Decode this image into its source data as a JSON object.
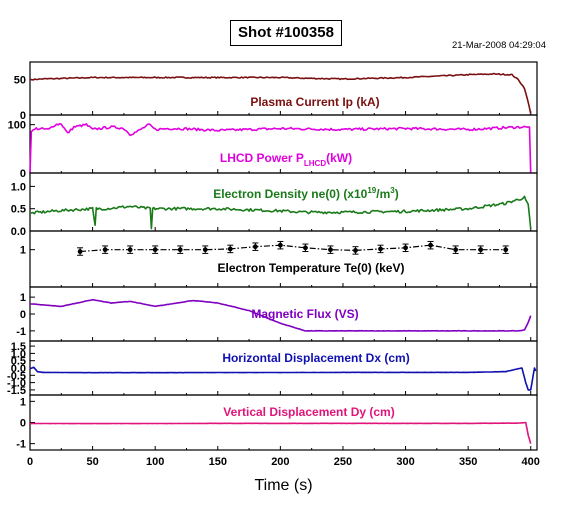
{
  "chart_data": {
    "type": "line",
    "title": "Shot #100358",
    "timestamp": "21-Mar-2008 04:29:04",
    "xlabel": "Time (s)",
    "xlim": [
      0,
      405
    ],
    "x_ticks": [
      "0",
      "50",
      "100",
      "150",
      "200",
      "250",
      "300",
      "350",
      "400"
    ],
    "panels": [
      {
        "label": "Plasma Current Ip (kA)",
        "label_main": "Plasma Current Ip (kA)",
        "color": "#7a1010",
        "ylim": [
          0,
          75
        ],
        "y_ticks": [
          0,
          50
        ],
        "x": [
          0,
          10,
          50,
          100,
          150,
          200,
          220,
          250,
          300,
          350,
          370,
          385,
          390,
          395,
          398,
          400
        ],
        "y": [
          50,
          51,
          53,
          53,
          53,
          53,
          52,
          51,
          53,
          57,
          58,
          57,
          50,
          38,
          18,
          2
        ]
      },
      {
        "label": "LHCD Power P LHCD (kW)",
        "label_main": "LHCD Power P",
        "label_sub": "LHCD",
        "label_tail": "(kW)",
        "color": "#e000e0",
        "ylim": [
          0,
          120
        ],
        "y_ticks": [
          0,
          100
        ],
        "x": [
          0,
          1,
          5,
          15,
          20,
          25,
          30,
          35,
          45,
          50,
          55,
          65,
          70,
          75,
          80,
          85,
          95,
          100,
          110,
          120,
          150,
          200,
          250,
          300,
          350,
          390,
          399,
          400
        ],
        "y": [
          0,
          85,
          92,
          90,
          100,
          102,
          82,
          95,
          100,
          90,
          92,
          95,
          94,
          92,
          80,
          85,
          100,
          90,
          92,
          92,
          88,
          92,
          90,
          92,
          90,
          95,
          95,
          0
        ]
      },
      {
        "label": "Electron Density ne(0) (x10^19/m^3)",
        "label_main": "Electron Density ne(0) (x10",
        "label_sup1": "19",
        "label_mid": "/m",
        "label_sup2": "3",
        "label_tail": ")",
        "color": "#1a7a1a",
        "ylim": [
          0,
          1.3
        ],
        "y_ticks": [
          0.0,
          0.5,
          1.0
        ],
        "x": [
          0,
          20,
          50,
          52,
          53,
          54,
          60,
          80,
          96,
          97,
          98,
          100,
          150,
          200,
          220,
          250,
          300,
          350,
          380,
          395,
          398,
          400
        ],
        "y": [
          0.4,
          0.45,
          0.5,
          0.12,
          0.5,
          0.5,
          0.5,
          0.55,
          0.5,
          0.05,
          0.5,
          0.5,
          0.5,
          0.45,
          0.42,
          0.42,
          0.44,
          0.5,
          0.62,
          0.75,
          0.6,
          0.05
        ]
      },
      {
        "label": "Electron Temperature Te(0) (keV)",
        "label_main": "Electron Temperature Te(0) (keV)",
        "color": "#000000",
        "ylim": [
          0,
          1.5
        ],
        "y_ticks": [
          1
        ],
        "x": [
          40,
          60,
          80,
          100,
          120,
          140,
          160,
          180,
          200,
          220,
          240,
          260,
          280,
          300,
          320,
          340,
          360,
          380
        ],
        "y": [
          0.95,
          1.0,
          1.0,
          1.0,
          1.0,
          1.0,
          1.02,
          1.08,
          1.12,
          1.05,
          1.0,
          0.98,
          1.02,
          1.05,
          1.12,
          1.0,
          1.0,
          1.0
        ],
        "err": 0.1
      },
      {
        "label": "Magnetic Flux (VS)",
        "label_main": "Magnetic Flux (VS)",
        "color": "#7f00c0",
        "ylim": [
          -1.6,
          1.6
        ],
        "y_ticks": [
          -1,
          0,
          1
        ],
        "x": [
          0,
          25,
          50,
          65,
          80,
          100,
          130,
          150,
          175,
          200,
          220,
          300,
          390,
          395,
          398,
          400
        ],
        "y": [
          0.6,
          0.45,
          0.85,
          0.65,
          0.75,
          0.45,
          0.8,
          0.65,
          0.2,
          -0.55,
          -1.0,
          -1.0,
          -1.0,
          -0.95,
          -0.5,
          -0.1
        ]
      },
      {
        "label": "Horizontal Displacement Dx (cm)",
        "label_main": "Horizontal Displacement Dx (cm)",
        "color": "#1010b0",
        "ylim": [
          -1.85,
          1.85
        ],
        "y_ticks": [
          -1.5,
          -1.0,
          -0.5,
          0.0,
          0.5,
          1.0,
          1.5
        ],
        "x": [
          0,
          3,
          6,
          10,
          50,
          100,
          150,
          200,
          250,
          300,
          350,
          380,
          390,
          393,
          396,
          398,
          399,
          400,
          403,
          404
        ],
        "y": [
          -0.05,
          0.05,
          -0.25,
          -0.3,
          -0.32,
          -0.32,
          -0.31,
          -0.31,
          -0.3,
          -0.3,
          -0.3,
          -0.25,
          -0.05,
          0.0,
          -1.0,
          -1.5,
          -1.5,
          -1.5,
          0.0,
          -0.2
        ]
      },
      {
        "label": "Vertical Displacement Dy (cm)",
        "label_main": "Vertical Displacement Dy (cm)",
        "color": "#e0147a",
        "ylim": [
          -1.3,
          1.3
        ],
        "y_ticks": [
          -1,
          0,
          1
        ],
        "x": [
          0,
          50,
          100,
          150,
          200,
          250,
          300,
          350,
          390,
          396,
          398,
          400
        ],
        "y": [
          -0.05,
          -0.05,
          -0.05,
          -0.04,
          -0.04,
          -0.04,
          -0.04,
          -0.04,
          -0.03,
          0.0,
          -0.6,
          -1.0
        ]
      }
    ]
  }
}
